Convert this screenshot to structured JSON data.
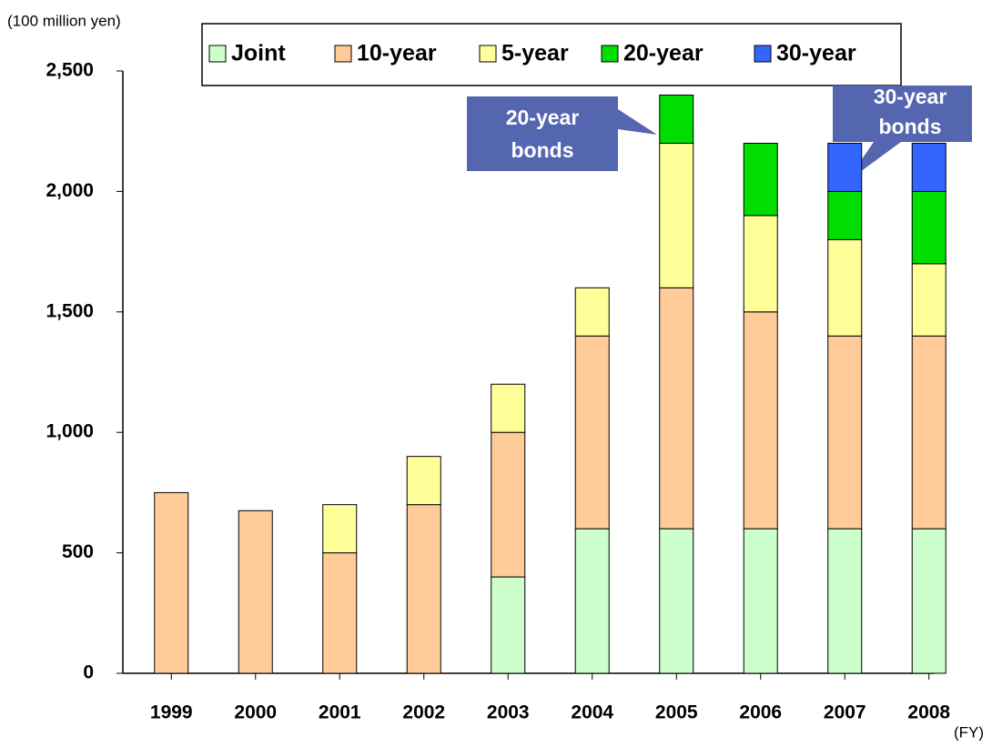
{
  "chart_data": {
    "type": "stacked_bar",
    "y_unit_label": "(100 million yen)",
    "x_unit_label": "(FY)",
    "categories": [
      "1999",
      "2000",
      "2001",
      "2002",
      "2003",
      "2004",
      "2005",
      "2006",
      "2007",
      "2008"
    ],
    "series": [
      {
        "name": "Joint",
        "color": "#ccffcc",
        "values": [
          null,
          null,
          null,
          null,
          400,
          600,
          600,
          600,
          600,
          600
        ]
      },
      {
        "name": "10-year",
        "color": "#ffcc99",
        "values": [
          750,
          675,
          500,
          700,
          600,
          800,
          1000,
          900,
          800,
          800
        ]
      },
      {
        "name": "5-year",
        "color": "#ffff99",
        "values": [
          null,
          null,
          200,
          200,
          200,
          200,
          600,
          400,
          400,
          300
        ]
      },
      {
        "name": "20-year",
        "color": "#00dd00",
        "values": [
          null,
          null,
          null,
          null,
          null,
          null,
          200,
          300,
          200,
          300
        ]
      },
      {
        "name": "30-year",
        "color": "#3366ff",
        "values": [
          null,
          null,
          null,
          null,
          null,
          null,
          null,
          null,
          200,
          200
        ]
      }
    ],
    "ylim": [
      0,
      2500
    ],
    "yticks": [
      0,
      500,
      {
        "value": 1000,
        "label": "1,000"
      },
      {
        "value": 1500,
        "label": "1,500"
      },
      {
        "value": 2000,
        "label": "2,000"
      },
      {
        "value": 2500,
        "label": "2,500"
      }
    ],
    "grid": false,
    "legend": "top",
    "annotations": [
      {
        "lines": [
          "20-year",
          "bonds"
        ]
      },
      {
        "lines": [
          "30-year",
          "bonds"
        ]
      }
    ]
  }
}
